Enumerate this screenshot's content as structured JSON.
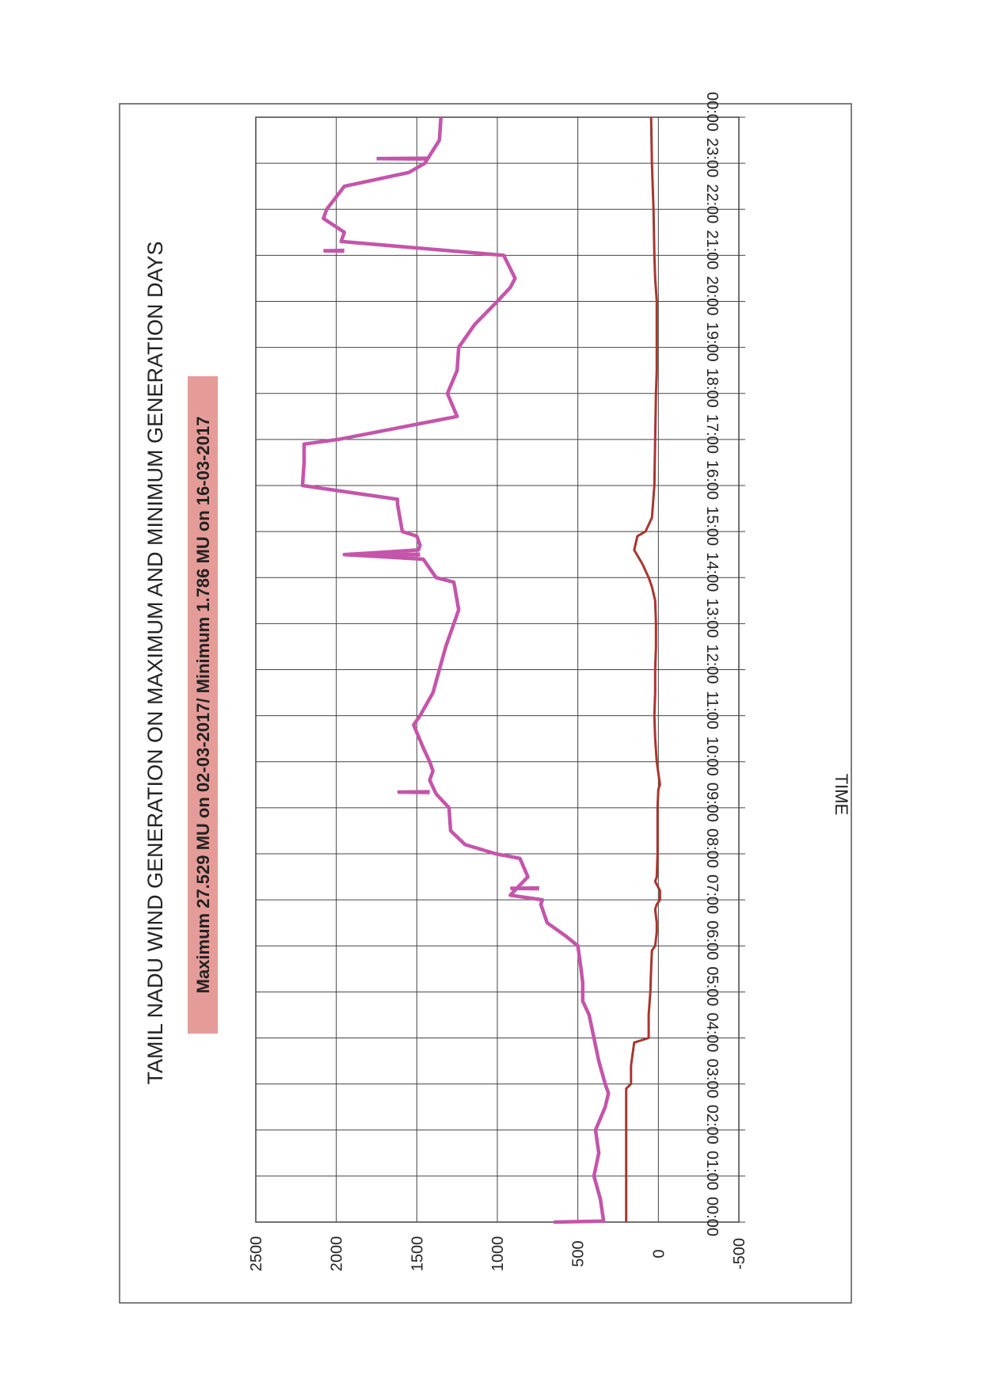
{
  "chart_data": {
    "type": "line",
    "orientation": "rotated-90-cw",
    "title": "TAMIL NADU WIND GENERATION ON MAXIMUM AND MINIMUM GENERATION DAYS",
    "subtitle": "Maximum 27.529 MU on 02-03-2017/ Minimum 1.786 MU on 16-03-2017",
    "xlabel": "TIME",
    "ylabel": "",
    "ylim": [
      -500,
      2500
    ],
    "y_ticks": [
      "-500",
      "0",
      "500",
      "1000",
      "1500",
      "2000",
      "2500"
    ],
    "x_ticks": [
      "00:00",
      "01:00",
      "02:00",
      "03:00",
      "04:00",
      "05:00",
      "06:00",
      "07:00",
      "08:00",
      "09:00",
      "10:00",
      "11:00",
      "12:00",
      "13:00",
      "14:00",
      "15:00",
      "16:00",
      "17:00",
      "18:00",
      "19:00",
      "20:00",
      "21:00",
      "22:00",
      "23:00",
      "00:00"
    ],
    "grid": true,
    "colors": {
      "max": "#c455aa",
      "min": "#a8362f",
      "subtitle_bg": "#e59c98",
      "grid": "#444444"
    },
    "series": [
      {
        "role": "max",
        "x_hours": [
          0,
          0.02,
          0.5,
          1,
          1.5,
          2,
          2.5,
          2.8,
          3,
          3.5,
          4,
          4.5,
          4.8,
          5.2,
          5.5,
          6,
          6.2,
          6.5,
          6.9,
          7,
          7.1,
          7.5,
          7.9,
          8,
          8.2,
          8.5,
          9,
          9.3,
          9.6,
          9.8,
          10,
          10.3,
          10.8,
          11,
          11.5,
          12,
          12.5,
          13,
          13.3,
          13.9,
          14,
          14.4,
          14.5,
          14.6,
          14.7,
          14.9,
          15,
          15.6,
          15.7,
          16,
          16.5,
          16.9,
          17,
          17.5,
          18,
          18.5,
          19,
          19.5,
          20,
          20.3,
          20.5,
          21,
          21.3,
          21.5,
          21.8,
          22,
          22.5,
          22.8,
          23,
          23.5,
          24
        ],
        "values": [
          650,
          340,
          360,
          400,
          370,
          390,
          330,
          310,
          330,
          370,
          400,
          430,
          470,
          470,
          480,
          500,
          570,
          690,
          730,
          720,
          920,
          810,
          860,
          1010,
          1200,
          1290,
          1300,
          1380,
          1420,
          1400,
          1420,
          1460,
          1520,
          1480,
          1400,
          1360,
          1320,
          1270,
          1240,
          1270,
          1380,
          1460,
          1950,
          1490,
          1480,
          1500,
          1590,
          1620,
          1620,
          2210,
          2200,
          2200,
          1990,
          1250,
          1310,
          1250,
          1240,
          1140,
          1000,
          920,
          890,
          960,
          1970,
          1950,
          2080,
          2060,
          1950,
          1550,
          1450,
          1360,
          1350
        ],
        "spikes": [
          {
            "x_hours": 9.34,
            "values": [
              1420,
              1620,
              1420
            ]
          },
          {
            "x_hours": 7.25,
            "values": [
              740,
              920,
              740
            ]
          },
          {
            "x_hours": 14.5,
            "values": [
              1480,
              1950,
              1480
            ]
          },
          {
            "x_hours": 21.1,
            "values": [
              1950,
              2080,
              1950
            ]
          },
          {
            "x_hours": 23.1,
            "values": [
              1430,
              1750,
              1430
            ]
          }
        ]
      },
      {
        "role": "min",
        "x_hours": [
          0,
          1,
          2,
          2.9,
          3,
          3.4,
          3.9,
          4,
          4.5,
          5,
          5.5,
          5.9,
          6,
          6.3,
          6.5,
          6.8,
          6.9,
          7,
          7.2,
          7.4,
          7.5,
          8,
          9,
          9.4,
          9.5,
          10,
          10.5,
          11,
          11.5,
          12,
          12.5,
          13,
          13.5,
          13.8,
          14,
          14.3,
          14.6,
          14.9,
          15,
          15.3,
          16,
          17,
          18,
          18.5,
          19,
          20,
          20.5,
          21,
          22,
          23,
          24
        ],
        "values": [
          200,
          200,
          200,
          200,
          170,
          170,
          150,
          60,
          60,
          50,
          45,
          40,
          20,
          10,
          10,
          20,
          10,
          -10,
          -10,
          20,
          10,
          5,
          5,
          0,
          -10,
          10,
          20,
          25,
          20,
          20,
          15,
          15,
          20,
          40,
          60,
          100,
          150,
          130,
          80,
          40,
          25,
          20,
          15,
          10,
          10,
          10,
          20,
          25,
          30,
          40,
          45
        ]
      }
    ]
  }
}
